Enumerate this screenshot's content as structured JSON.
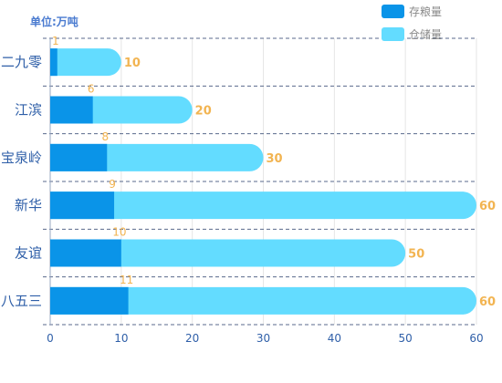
{
  "chart_data": {
    "type": "bar",
    "orientation": "horizontal",
    "unit_label": "单位:万吨",
    "categories": [
      "二九零",
      "江滨",
      "宝泉岭",
      "新华",
      "友谊",
      "八五三"
    ],
    "series": [
      {
        "name": "存粮量",
        "values": [
          1,
          6,
          8,
          9,
          10,
          11
        ],
        "color": "#0a94e8"
      },
      {
        "name": "仓储量",
        "values": [
          10,
          20,
          30,
          60,
          50,
          60
        ],
        "color": "#63dcff"
      }
    ],
    "xlim": [
      0,
      60
    ],
    "xticks": [
      0,
      10,
      20,
      30,
      40,
      50,
      60
    ],
    "grid": true,
    "legend_position": "top-right",
    "label_color": "#f2b451"
  }
}
